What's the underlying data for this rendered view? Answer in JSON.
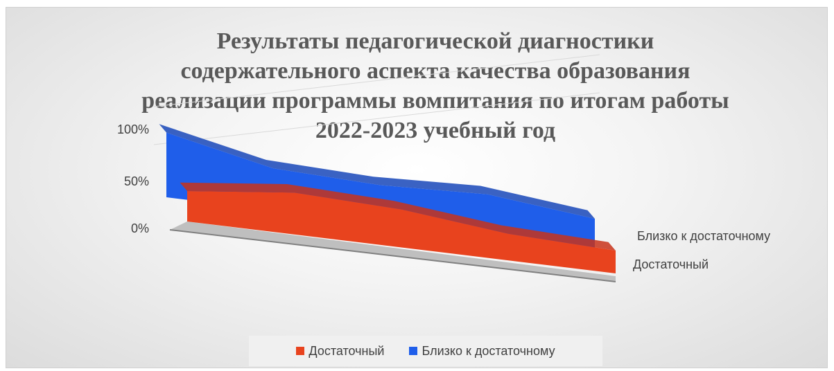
{
  "colors": {
    "series_0": "#e8431e",
    "series_1": "#1f5eea",
    "series_0_dark": "#c8321a",
    "series_1_dark": "#1746b8",
    "grid": "#d9d9d9",
    "floor": "#bfbfbf"
  },
  "chart_data": {
    "type": "area",
    "title_lines": [
      "Результаты педагогической диагностики",
      "содержательного аспекта качества образования",
      "реализации программы вомпитания по итогам работы",
      "2022-2023 учебный год"
    ],
    "categories": [
      "",
      "",
      "",
      "",
      ""
    ],
    "yticks": [
      "0%",
      "50%",
      "100%"
    ],
    "ylim": [
      0,
      1
    ],
    "series": [
      {
        "name": "Достаточный",
        "values": [
          0.4,
          0.55,
          0.5,
          0.35,
          0.3
        ]
      },
      {
        "name": "Близко к достаточному",
        "values": [
          0.85,
          0.55,
          0.5,
          0.55,
          0.4
        ]
      }
    ],
    "legend": {
      "position": "bottom",
      "items": [
        "Достаточный",
        "Близко к достаточному"
      ]
    },
    "grid": true
  }
}
